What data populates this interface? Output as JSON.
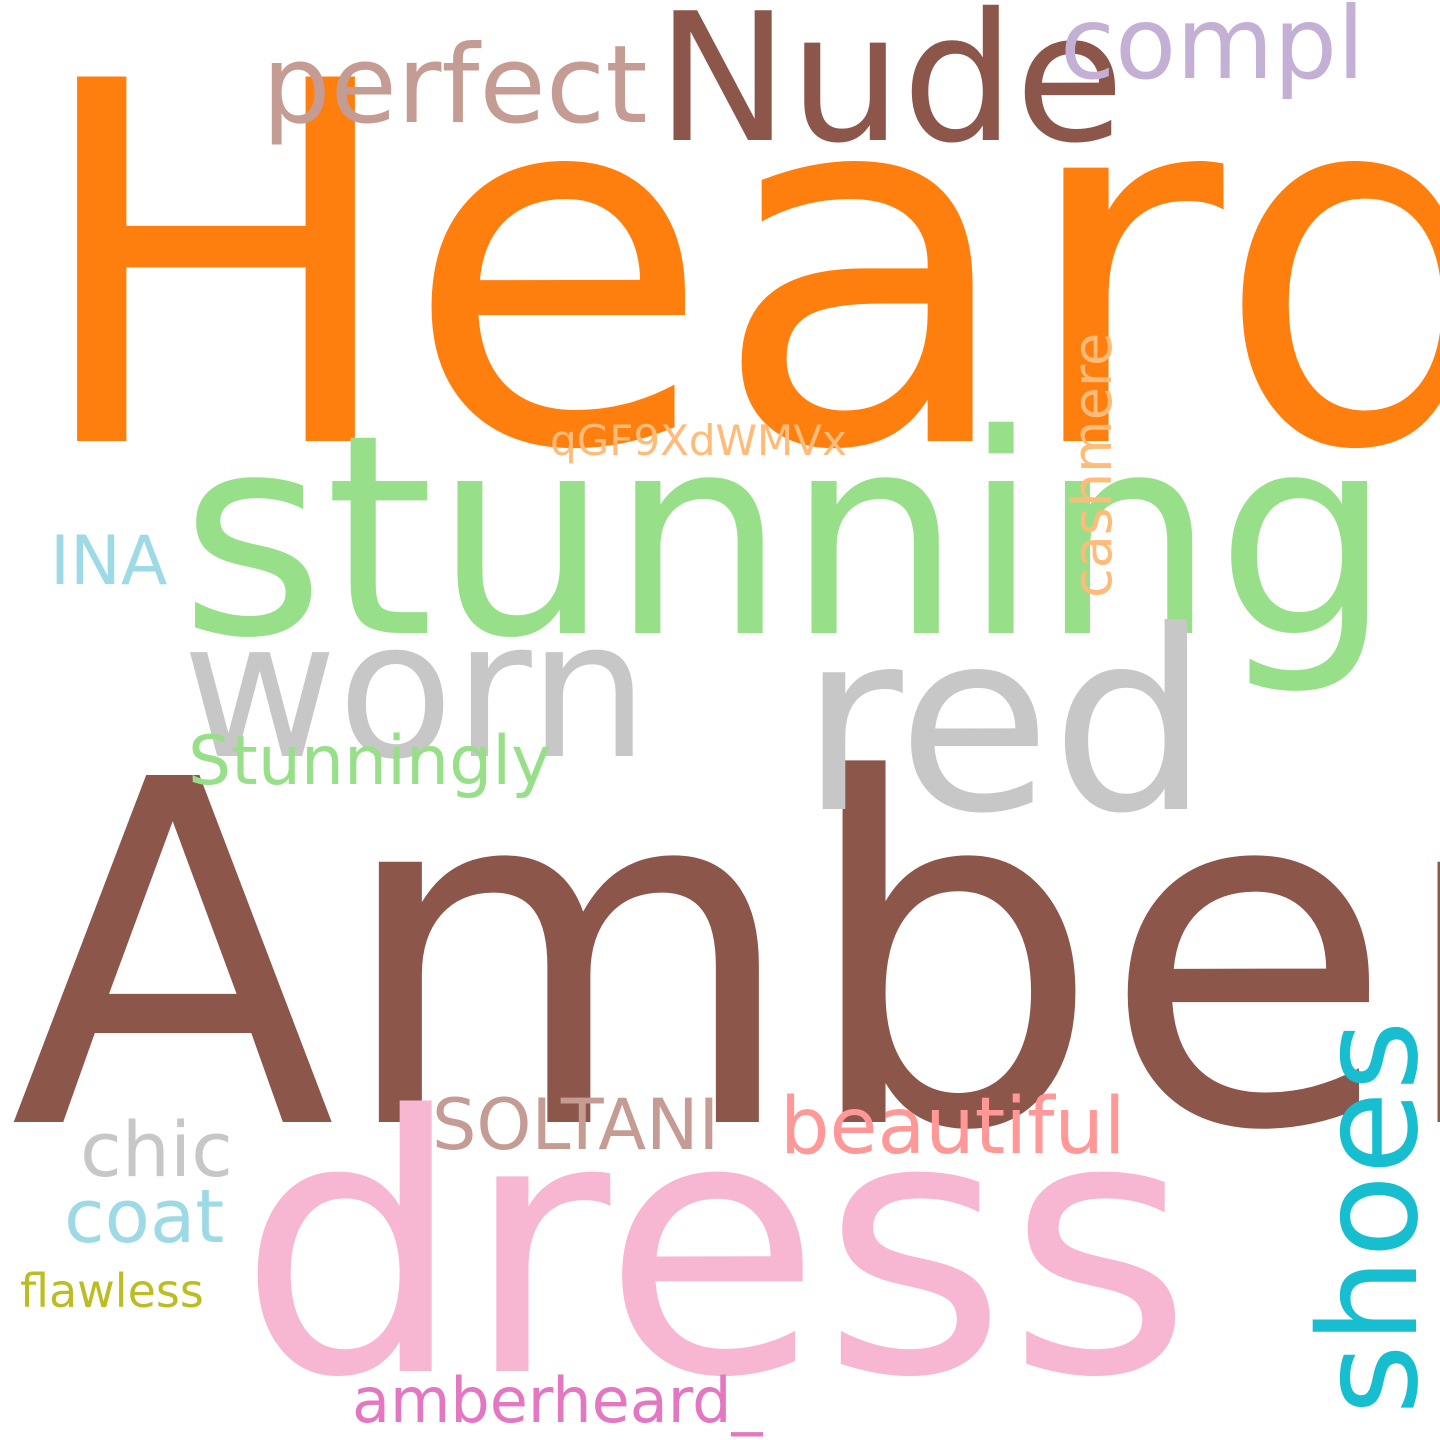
{
  "words": [
    {
      "key": "heard",
      "text": "Heard",
      "color": "#ff7f0e"
    },
    {
      "key": "amber",
      "text": "Amber",
      "color": "#8c564b"
    },
    {
      "key": "stunning",
      "text": "stunning",
      "color": "#98df8a"
    },
    {
      "key": "dress",
      "text": "dress",
      "color": "#f7b6d2"
    },
    {
      "key": "red",
      "text": "red",
      "color": "#c7c7c7"
    },
    {
      "key": "worn",
      "text": "worn",
      "color": "#c7c7c7"
    },
    {
      "key": "nude",
      "text": "Nude",
      "color": "#8c564b"
    },
    {
      "key": "shoes",
      "text": "shoes",
      "color": "#17becf"
    },
    {
      "key": "perfect",
      "text": "perfect",
      "color": "#c49c94"
    },
    {
      "key": "compl",
      "text": "compl",
      "color": "#c5b0d5"
    },
    {
      "key": "cashmere",
      "text": "cashmere",
      "color": "#ffbb78"
    },
    {
      "key": "stunningly",
      "text": "Stunningly",
      "color": "#98df8a"
    },
    {
      "key": "beautiful",
      "text": "beautiful",
      "color": "#ff9896"
    },
    {
      "key": "soltani",
      "text": "SOLTANI",
      "color": "#c49c94"
    },
    {
      "key": "chic",
      "text": "chic",
      "color": "#c7c7c7"
    },
    {
      "key": "coat",
      "text": "coat",
      "color": "#9edae5"
    },
    {
      "key": "ina",
      "text": "INA",
      "color": "#9edae5"
    },
    {
      "key": "code",
      "text": "qGF9XdWMVx",
      "color": "#ffbb78"
    },
    {
      "key": "flawless",
      "text": "flawless",
      "color": "#bcbd22"
    },
    {
      "key": "amberheard",
      "text": "amberheard_",
      "color": "#e377c2"
    }
  ]
}
